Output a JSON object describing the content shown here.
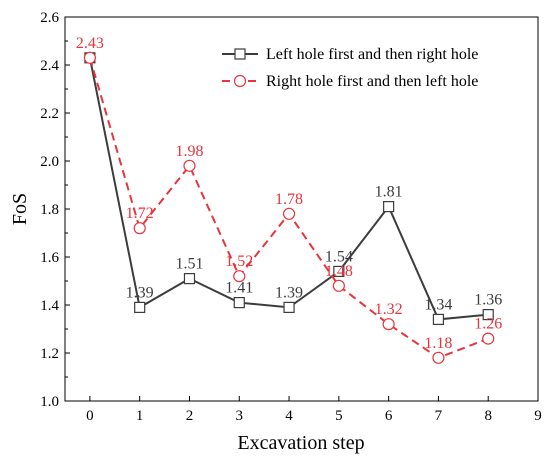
{
  "chart_data": {
    "type": "line",
    "title": "",
    "xlabel": "Excavation step",
    "ylabel": "FoS",
    "xlim": [
      -0.5,
      9
    ],
    "ylim": [
      1.0,
      2.6
    ],
    "xticks": [
      "0",
      "1",
      "2",
      "3",
      "4",
      "5",
      "6",
      "7",
      "8",
      "9"
    ],
    "yticks": [
      "1.0",
      "1.2",
      "1.4",
      "1.6",
      "1.8",
      "2.0",
      "2.2",
      "2.4",
      "2.6"
    ],
    "grid": false,
    "legend_position": "top-right",
    "x": [
      0,
      1,
      2,
      3,
      4,
      5,
      6,
      7,
      8
    ],
    "series": [
      {
        "name": "Left hole first and then right hole",
        "values": [
          2.43,
          1.39,
          1.51,
          1.41,
          1.39,
          1.54,
          1.81,
          1.34,
          1.36
        ],
        "labels": [
          "",
          "1.39",
          "1.51",
          "1.41",
          "1.39",
          "1.54",
          "1.81",
          "1.34",
          "1.36"
        ],
        "color": "#3c3c3c",
        "line": "solid",
        "marker": "square"
      },
      {
        "name": "Right hole first and then left hole",
        "values": [
          2.43,
          1.72,
          1.98,
          1.52,
          1.78,
          1.48,
          1.32,
          1.18,
          1.26
        ],
        "labels": [
          "2.43",
          "1.72",
          "1.98",
          "1.52",
          "1.78",
          "1.48",
          "1.32",
          "1.18",
          "1.26"
        ],
        "color": "#e8343c",
        "line": "dashed",
        "marker": "circle"
      }
    ]
  }
}
